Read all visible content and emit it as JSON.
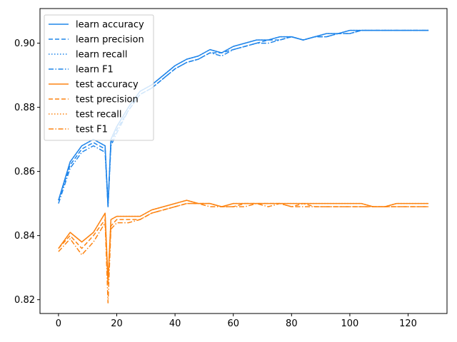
{
  "chart_data": {
    "type": "line",
    "title": "",
    "xlabel": "",
    "ylabel": "",
    "xlim": [
      -6.35,
      133.35
    ],
    "ylim": [
      0.8157,
      0.9108
    ],
    "xticks": [
      0,
      20,
      40,
      60,
      80,
      100,
      120
    ],
    "yticks": [
      0.82,
      0.84,
      0.86,
      0.88,
      0.9
    ],
    "ytick_labels": [
      "0.82",
      "0.84",
      "0.86",
      "0.88",
      "0.90"
    ],
    "grid": false,
    "legend_position": "top-left",
    "colors": {
      "learn": "#1f85ea",
      "test": "#fd8412"
    },
    "linestyles": {
      "accuracy": "solid",
      "precision": "dashed",
      "recall": "dotted",
      "F1": "dashdot"
    },
    "x": [
      0,
      4,
      8,
      12,
      16,
      17,
      18,
      20,
      24,
      28,
      32,
      36,
      40,
      44,
      48,
      52,
      56,
      60,
      64,
      68,
      72,
      76,
      80,
      84,
      88,
      92,
      96,
      100,
      104,
      108,
      112,
      116,
      120,
      124,
      127
    ],
    "series": [
      {
        "name": "learn accuracy",
        "group": "learn",
        "metric": "accuracy",
        "values": [
          0.851,
          0.863,
          0.868,
          0.87,
          0.868,
          0.849,
          0.87,
          0.874,
          0.88,
          0.885,
          0.887,
          0.89,
          0.893,
          0.895,
          0.896,
          0.898,
          0.897,
          0.899,
          0.9,
          0.901,
          0.901,
          0.902,
          0.902,
          0.901,
          0.902,
          0.903,
          0.903,
          0.904,
          0.904,
          0.904,
          0.904,
          0.904,
          0.904,
          0.904,
          0.904
        ]
      },
      {
        "name": "learn precision",
        "group": "learn",
        "metric": "precision",
        "values": [
          0.851,
          0.862,
          0.867,
          0.869,
          0.867,
          0.85,
          0.869,
          0.873,
          0.879,
          0.884,
          0.886,
          0.889,
          0.892,
          0.894,
          0.895,
          0.897,
          0.897,
          0.898,
          0.899,
          0.9,
          0.901,
          0.901,
          0.902,
          0.901,
          0.902,
          0.902,
          0.903,
          0.903,
          0.904,
          0.904,
          0.904,
          0.904,
          0.904,
          0.904,
          0.904
        ]
      },
      {
        "name": "learn recall",
        "group": "learn",
        "metric": "recall",
        "values": [
          0.851,
          0.863,
          0.868,
          0.87,
          0.868,
          0.849,
          0.87,
          0.874,
          0.88,
          0.885,
          0.887,
          0.89,
          0.893,
          0.895,
          0.896,
          0.898,
          0.897,
          0.899,
          0.9,
          0.901,
          0.901,
          0.902,
          0.902,
          0.901,
          0.902,
          0.903,
          0.903,
          0.904,
          0.904,
          0.904,
          0.904,
          0.904,
          0.904,
          0.904,
          0.904
        ]
      },
      {
        "name": "learn F1",
        "group": "learn",
        "metric": "F1",
        "values": [
          0.85,
          0.861,
          0.866,
          0.868,
          0.866,
          0.849,
          0.868,
          0.872,
          0.879,
          0.884,
          0.886,
          0.889,
          0.892,
          0.894,
          0.895,
          0.897,
          0.896,
          0.898,
          0.899,
          0.9,
          0.9,
          0.901,
          0.902,
          0.901,
          0.902,
          0.902,
          0.903,
          0.903,
          0.904,
          0.904,
          0.904,
          0.904,
          0.904,
          0.904,
          0.904
        ]
      },
      {
        "name": "test accuracy",
        "group": "test",
        "metric": "accuracy",
        "values": [
          0.836,
          0.841,
          0.838,
          0.841,
          0.847,
          0.826,
          0.845,
          0.846,
          0.846,
          0.846,
          0.848,
          0.849,
          0.85,
          0.851,
          0.85,
          0.85,
          0.849,
          0.85,
          0.85,
          0.85,
          0.85,
          0.85,
          0.85,
          0.85,
          0.85,
          0.85,
          0.85,
          0.85,
          0.85,
          0.849,
          0.849,
          0.85,
          0.85,
          0.85,
          0.85
        ]
      },
      {
        "name": "test precision",
        "group": "test",
        "metric": "precision",
        "values": [
          0.836,
          0.84,
          0.836,
          0.84,
          0.845,
          0.825,
          0.843,
          0.845,
          0.845,
          0.845,
          0.847,
          0.848,
          0.849,
          0.85,
          0.85,
          0.85,
          0.849,
          0.849,
          0.85,
          0.85,
          0.85,
          0.85,
          0.849,
          0.85,
          0.849,
          0.849,
          0.849,
          0.849,
          0.849,
          0.849,
          0.849,
          0.849,
          0.849,
          0.849,
          0.849
        ]
      },
      {
        "name": "test recall",
        "group": "test",
        "metric": "recall",
        "values": [
          0.836,
          0.841,
          0.838,
          0.841,
          0.847,
          0.826,
          0.845,
          0.846,
          0.846,
          0.846,
          0.848,
          0.849,
          0.85,
          0.851,
          0.85,
          0.85,
          0.849,
          0.85,
          0.85,
          0.85,
          0.85,
          0.85,
          0.85,
          0.85,
          0.85,
          0.85,
          0.85,
          0.85,
          0.85,
          0.849,
          0.849,
          0.85,
          0.85,
          0.85,
          0.85
        ]
      },
      {
        "name": "test F1",
        "group": "test",
        "metric": "F1",
        "values": [
          0.835,
          0.839,
          0.834,
          0.838,
          0.844,
          0.819,
          0.842,
          0.844,
          0.844,
          0.845,
          0.847,
          0.848,
          0.849,
          0.85,
          0.85,
          0.849,
          0.849,
          0.849,
          0.849,
          0.85,
          0.849,
          0.85,
          0.849,
          0.849,
          0.849,
          0.849,
          0.849,
          0.849,
          0.849,
          0.849,
          0.849,
          0.849,
          0.849,
          0.849,
          0.849
        ]
      }
    ]
  }
}
